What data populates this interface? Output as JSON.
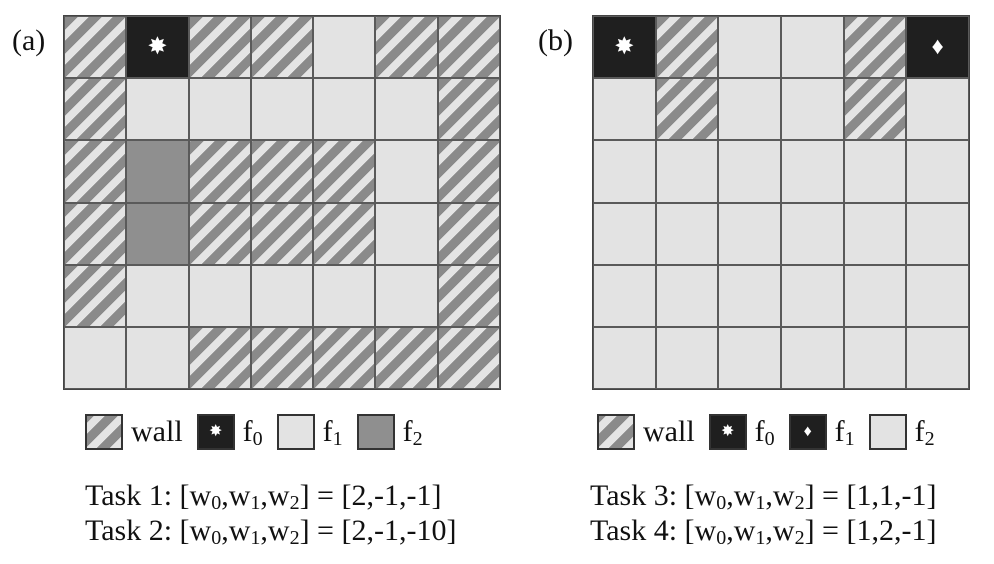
{
  "panels": [
    {
      "label": "(a)",
      "rows": [
        [
          "wall",
          "f0",
          "wall",
          "wall",
          "f1",
          "wall",
          "wall"
        ],
        [
          "wall",
          "f1",
          "f1",
          "f1",
          "f1",
          "f1",
          "wall"
        ],
        [
          "wall",
          "f2",
          "wall",
          "wall",
          "wall",
          "f1",
          "wall"
        ],
        [
          "wall",
          "f2",
          "wall",
          "wall",
          "wall",
          "f1",
          "wall"
        ],
        [
          "wall",
          "f1",
          "f1",
          "f1",
          "f1",
          "f1",
          "wall"
        ],
        [
          "f1",
          "f1",
          "wall",
          "wall",
          "wall",
          "wall",
          "wall"
        ]
      ],
      "cell_styles": {
        "wall": "wall",
        "f0": "black-star",
        "f1": "light",
        "f2": "dark"
      },
      "legend": [
        {
          "key": "wall",
          "text": "wall",
          "sub": ""
        },
        {
          "key": "f0",
          "text": "f",
          "sub": "0"
        },
        {
          "key": "f1",
          "text": "f",
          "sub": "1"
        },
        {
          "key": "f2",
          "text": "f",
          "sub": "2"
        }
      ],
      "tasks": [
        {
          "prefix": "Task 1: [w",
          "w0": "0",
          "sep1": ",w",
          "w1": "1",
          "sep2": ",w",
          "w2": "2",
          "suffix": "] = [2,-1,-1]"
        },
        {
          "prefix": "Task 2: [w",
          "w0": "0",
          "sep1": ",w",
          "w1": "1",
          "sep2": ",w",
          "w2": "2",
          "suffix": "] = [2,-1,-10]"
        }
      ]
    },
    {
      "label": "(b)",
      "rows": [
        [
          "f0",
          "wall",
          "f2",
          "f2",
          "wall",
          "f1"
        ],
        [
          "f2",
          "wall",
          "f2",
          "f2",
          "wall",
          "f2"
        ],
        [
          "f2",
          "f2",
          "f2",
          "f2",
          "f2",
          "f2"
        ],
        [
          "f2",
          "f2",
          "f2",
          "f2",
          "f2",
          "f2"
        ],
        [
          "f2",
          "f2",
          "f2",
          "f2",
          "f2",
          "f2"
        ],
        [
          "f2",
          "f2",
          "f2",
          "f2",
          "f2",
          "f2"
        ]
      ],
      "cell_styles": {
        "wall": "wall",
        "f0": "black-star",
        "f1": "black-diamond",
        "f2": "light"
      },
      "legend": [
        {
          "key": "wall",
          "text": "wall",
          "sub": ""
        },
        {
          "key": "f0",
          "text": "f",
          "sub": "0"
        },
        {
          "key": "f1",
          "text": "f",
          "sub": "1"
        },
        {
          "key": "f2",
          "text": "f",
          "sub": "2"
        }
      ],
      "tasks": [
        {
          "prefix": "Task 3: [w",
          "w0": "0",
          "sep1": ",w",
          "w1": "1",
          "sep2": ",w",
          "w2": "2",
          "suffix": "] = [1,1,-1]"
        },
        {
          "prefix": "Task 4: [w",
          "w0": "0",
          "sep1": ",w",
          "w1": "1",
          "sep2": ",w",
          "w2": "2",
          "suffix": "] = [1,2,-1]"
        }
      ]
    }
  ],
  "icons": {
    "star": "✸",
    "diamond": "♦"
  }
}
